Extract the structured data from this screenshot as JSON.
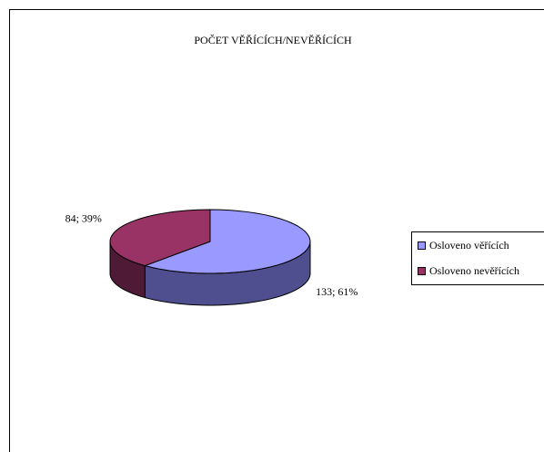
{
  "chart_data": {
    "type": "pie",
    "title": "POČET VĚŘÍCÍCH/NEVĚŘÍCÍCH",
    "categories": [
      "Osloveno věřících",
      "Osloveno nevěřících"
    ],
    "values": [
      133,
      84
    ],
    "value_labels": [
      "133; 61%",
      "84; 39%"
    ],
    "colors": [
      "#9999ff",
      "#993366"
    ],
    "side_colors": [
      "#4f4f8f",
      "#4f1a36"
    ],
    "legend": "right"
  }
}
